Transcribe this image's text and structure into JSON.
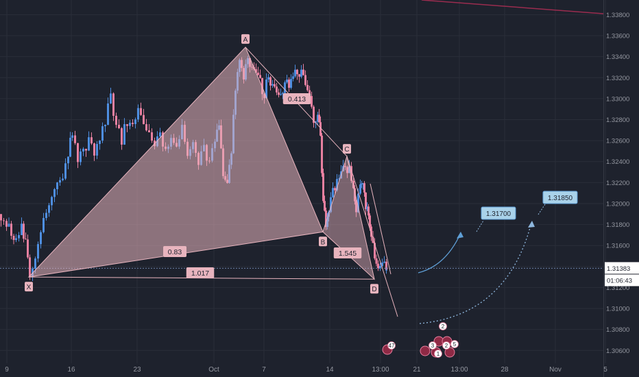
{
  "chart_data": {
    "type": "candlestick",
    "y_axis": {
      "range": [
        1.3053,
        1.3394
      ],
      "ticks": [
        "1.33800",
        "1.33600",
        "1.33400",
        "1.33200",
        "1.33000",
        "1.32800",
        "1.32600",
        "1.32400",
        "1.32200",
        "1.32000",
        "1.31800",
        "1.31600",
        "1.31400",
        "1.31200",
        "1.31000",
        "1.30800",
        "1.30600"
      ]
    },
    "x_axis": {
      "ticks": [
        "9",
        "16",
        "23",
        "Oct",
        "7",
        "14",
        "13:00",
        "21",
        "13:00",
        "28",
        "Nov",
        "5"
      ]
    },
    "current_price": {
      "value": "1.31383",
      "countdown": "01:06:43",
      "color": "#1e222d"
    },
    "pattern": {
      "color": "#e8b4be",
      "points": [
        {
          "label": "X",
          "price": 1.313
        },
        {
          "label": "A",
          "price": 1.3349
        },
        {
          "label": "B",
          "price": 1.3173
        },
        {
          "label": "C",
          "price": 1.3245
        },
        {
          "label": "D",
          "price": 1.3128
        }
      ],
      "ratios": [
        {
          "text": "0.83"
        },
        {
          "text": "0.413"
        },
        {
          "text": "1.545"
        },
        {
          "text": "1.017"
        }
      ]
    },
    "targets": [
      {
        "text": "1.31700"
      },
      {
        "text": "1.31850"
      }
    ],
    "events": [
      {
        "text": "47"
      },
      {
        "text": "2"
      },
      {
        "text": "3"
      },
      {
        "text": "2"
      },
      {
        "text": "1"
      },
      {
        "text": "5"
      }
    ],
    "colors": {
      "up": "#4e8ee0",
      "down": "#e880a0",
      "background": "#1e222d",
      "grid": "#2a2e39",
      "axis_text": "#9598a1"
    }
  }
}
